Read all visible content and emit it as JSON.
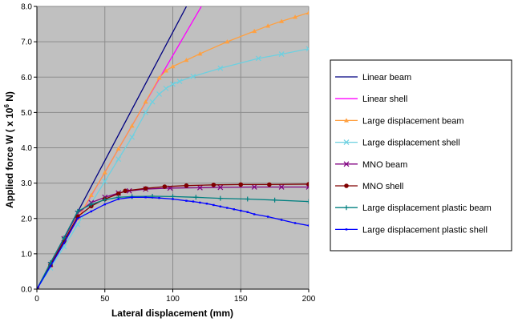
{
  "chart_data": {
    "type": "line",
    "title": "",
    "xlabel": "Lateral displacement (mm)",
    "ylabel_prefix": "Applied force W ( x 10",
    "ylabel_exponent": "6",
    "ylabel_suffix": " N)",
    "xlim": [
      0,
      200
    ],
    "ylim": [
      0,
      8
    ],
    "x_ticks": [
      0,
      50,
      100,
      150,
      200
    ],
    "x_tick_labels": [
      "0",
      "50",
      "100",
      "150",
      "200"
    ],
    "y_ticks": [
      0,
      1,
      2,
      3,
      4,
      5,
      6,
      7,
      8
    ],
    "y_tick_labels": [
      "0.0",
      "1.0",
      "2.0",
      "3.0",
      "4.0",
      "5.0",
      "6.0",
      "7.0",
      "8.0"
    ],
    "grid": true,
    "plot_background": "#c0c0c0",
    "legend_position": "right",
    "series": [
      {
        "name": "Linear beam",
        "color": "#000080",
        "marker": "none",
        "x": [
          0,
          110
        ],
        "y": [
          0,
          8.0
        ]
      },
      {
        "name": "Linear shell",
        "color": "#ff00ff",
        "marker": "none",
        "x": [
          0,
          121
        ],
        "y": [
          0,
          8.0
        ]
      },
      {
        "name": "Large displacement beam",
        "color": "#ffa040",
        "marker": "triangle",
        "x": [
          0,
          10,
          20,
          30,
          40,
          50,
          60,
          70,
          80,
          90,
          95,
          100,
          110,
          120,
          140,
          160,
          170,
          180,
          190,
          200
        ],
        "y": [
          0,
          0.66,
          1.32,
          2.0,
          2.66,
          3.3,
          3.97,
          4.62,
          5.3,
          5.98,
          6.18,
          6.3,
          6.48,
          6.66,
          7.0,
          7.3,
          7.45,
          7.58,
          7.7,
          7.82
        ]
      },
      {
        "name": "Large displacement shell",
        "color": "#6dd0e0",
        "marker": "x",
        "x": [
          0,
          10,
          20,
          30,
          40,
          50,
          60,
          70,
          80,
          85,
          90,
          95,
          100,
          105,
          115,
          135,
          163,
          180,
          200
        ],
        "y": [
          0,
          0.6,
          1.2,
          1.83,
          2.43,
          3.05,
          3.68,
          4.3,
          5.0,
          5.3,
          5.52,
          5.68,
          5.8,
          5.88,
          6.02,
          6.25,
          6.53,
          6.65,
          6.8
        ]
      },
      {
        "name": "MNO beam",
        "color": "#800080",
        "marker": "x",
        "x": [
          0,
          10,
          20,
          30,
          40,
          50,
          60,
          68,
          80,
          98,
          120,
          135,
          160,
          180,
          200
        ],
        "y": [
          0,
          0.7,
          1.43,
          2.15,
          2.45,
          2.6,
          2.72,
          2.78,
          2.83,
          2.86,
          2.87,
          2.88,
          2.89,
          2.89,
          2.89
        ]
      },
      {
        "name": "MNO shell",
        "color": "#800000",
        "marker": "dot",
        "x": [
          0,
          10,
          20,
          30,
          40,
          50,
          60,
          65,
          80,
          94,
          110,
          130,
          150,
          171,
          200
        ],
        "y": [
          0,
          0.68,
          1.36,
          2.05,
          2.35,
          2.55,
          2.7,
          2.78,
          2.85,
          2.9,
          2.93,
          2.95,
          2.96,
          2.96,
          2.97
        ]
      },
      {
        "name": "Large displacement plastic beam",
        "color": "#008080",
        "marker": "plus",
        "x": [
          0,
          10,
          20,
          30,
          40,
          50,
          60,
          70,
          85,
          100,
          117,
          135,
          155,
          175,
          200
        ],
        "y": [
          0,
          0.75,
          1.45,
          2.2,
          2.4,
          2.53,
          2.6,
          2.62,
          2.63,
          2.62,
          2.6,
          2.57,
          2.55,
          2.52,
          2.48
        ]
      },
      {
        "name": "Large displacement plastic shell",
        "color": "#0000ff",
        "marker": "smalldot",
        "x": [
          0,
          10,
          20,
          30,
          40,
          50,
          60,
          70,
          80,
          90,
          100,
          110,
          115,
          120,
          125,
          130,
          135,
          140,
          145,
          150,
          155,
          160,
          170,
          180,
          190,
          200
        ],
        "y": [
          0,
          0.65,
          1.3,
          2.0,
          2.2,
          2.4,
          2.55,
          2.6,
          2.6,
          2.58,
          2.55,
          2.5,
          2.48,
          2.45,
          2.42,
          2.38,
          2.34,
          2.3,
          2.26,
          2.22,
          2.18,
          2.12,
          2.05,
          1.96,
          1.87,
          1.8
        ]
      }
    ]
  }
}
